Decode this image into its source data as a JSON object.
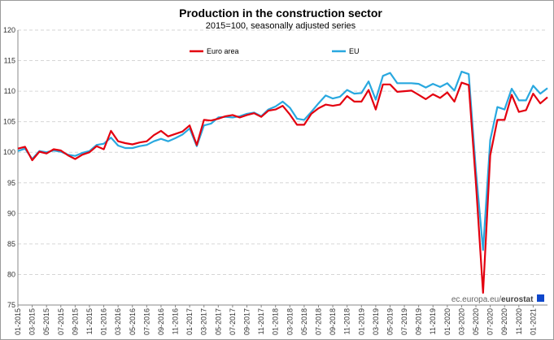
{
  "chart_data": {
    "type": "line",
    "title": "Production in the construction sector",
    "subtitle": "2015=100, seasonally adjusted series",
    "xlabel": "",
    "ylabel": "",
    "ylim": [
      75,
      120
    ],
    "yticks": [
      75,
      80,
      85,
      90,
      95,
      100,
      105,
      110,
      115,
      120
    ],
    "grid": true,
    "legend_position": "top-center",
    "x_tick_labels": [
      "01-2015",
      "03-2015",
      "05-2015",
      "07-2015",
      "09-2015",
      "11-2015",
      "01-2016",
      "03-2016",
      "05-2016",
      "07-2016",
      "09-2016",
      "11-2016",
      "01-2017",
      "03-2017",
      "05-2017",
      "07-2017",
      "09-2017",
      "11-2017",
      "01-2018",
      "03-2018",
      "05-2018",
      "07-2018",
      "09-2018",
      "11-2018",
      "01-2019",
      "03-2019",
      "05-2019",
      "07-2019",
      "09-2019",
      "11-2019",
      "01-2020",
      "03-2020",
      "05-2020",
      "07-2020",
      "09-2020",
      "11-2020",
      "01-2021"
    ],
    "series": [
      {
        "name": "Euro area",
        "color": "#e3000f",
        "values": [
          100.6,
          100.9,
          98.7,
          100.1,
          99.8,
          100.5,
          100.3,
          99.5,
          98.9,
          99.6,
          100.0,
          101.0,
          100.5,
          103.5,
          101.8,
          101.5,
          101.3,
          101.6,
          101.8,
          102.8,
          103.5,
          102.6,
          103.0,
          103.4,
          104.4,
          101.2,
          105.3,
          105.2,
          105.5,
          105.9,
          106.1,
          105.7,
          106.1,
          106.4,
          105.8,
          106.8,
          107.0,
          107.6,
          106.2,
          104.5,
          104.5,
          106.3,
          107.2,
          107.8,
          107.6,
          107.8,
          109.2,
          108.3,
          108.3,
          110.2,
          107.0,
          111.1,
          111.1,
          109.9,
          110.0,
          110.1,
          109.4,
          108.7,
          109.5,
          108.9,
          109.8,
          108.3,
          111.4,
          111.0,
          95.0,
          77.0,
          99.5,
          105.3,
          105.3,
          109.4,
          106.6,
          106.9,
          109.6,
          108.0,
          109.0
        ]
      },
      {
        "name": "EU",
        "color": "#29a8df",
        "values": [
          100.2,
          100.6,
          98.9,
          100.2,
          100.0,
          100.3,
          100.1,
          99.6,
          99.4,
          99.9,
          100.2,
          101.2,
          101.4,
          102.4,
          101.1,
          100.7,
          100.7,
          101.0,
          101.2,
          101.8,
          102.2,
          101.8,
          102.3,
          102.9,
          103.9,
          101.0,
          104.4,
          104.7,
          105.7,
          105.8,
          105.7,
          105.9,
          106.3,
          106.5,
          105.9,
          107.0,
          107.5,
          108.3,
          107.3,
          105.5,
          105.3,
          106.6,
          108.0,
          109.3,
          108.8,
          109.1,
          110.2,
          109.6,
          109.7,
          111.6,
          108.6,
          112.5,
          113.0,
          111.3,
          111.3,
          111.3,
          111.2,
          110.6,
          111.2,
          110.7,
          111.3,
          110.1,
          113.2,
          112.8,
          97.0,
          84.0,
          102.0,
          107.4,
          107.0,
          110.4,
          108.5,
          108.5,
          110.9,
          109.6,
          110.5
        ]
      }
    ]
  },
  "source": {
    "prefix": "ec.europa.eu/",
    "brand": "eurostat"
  },
  "colors": {
    "grid": "#d6d6d6",
    "axis": "#888888"
  }
}
